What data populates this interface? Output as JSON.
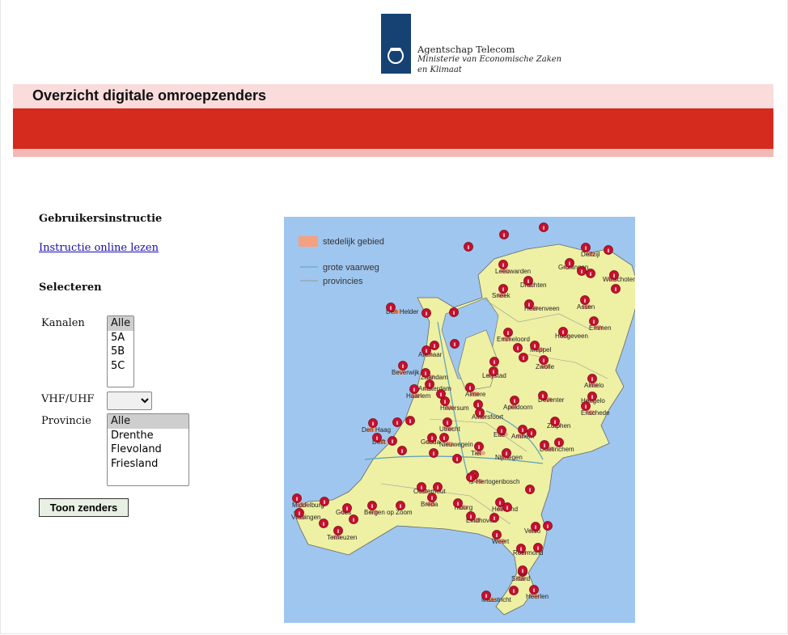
{
  "header": {
    "agency": "Agentschap Telecom",
    "ministry_line1": "Ministerie van Economische Zaken",
    "ministry_line2": "en Klimaat",
    "title": "Overzicht digitale omroepzenders"
  },
  "sidebar": {
    "instructions_heading": "Gebruikersinstructie",
    "instructions_link": "Instructie online lezen",
    "select_heading": "Selecteren",
    "channels_label": "Kanalen",
    "channels": [
      "Alle",
      "5A",
      "5B",
      "5C"
    ],
    "band_label": "VHF/UHF",
    "province_label": "Provincie",
    "provinces": [
      "Alle",
      "Drenthe",
      "Flevoland",
      "Friesland"
    ],
    "submit": "Toon zenders"
  },
  "map": {
    "legend": [
      "stedelijk gebied",
      "grote vaarweg",
      "provincies"
    ],
    "places": [
      "Den Helder",
      "Leeuwarden",
      "Groningen",
      "Delfzijl",
      "Drachten",
      "Sneek",
      "Heerenveen",
      "Assen",
      "Winschoten",
      "Emmen",
      "Hoogeveen",
      "Emmeloord",
      "Meppel",
      "Zwolle",
      "Lelystad",
      "Almere",
      "Alkmaar",
      "Beverwijk",
      "Zaandam",
      "Haarlem",
      "Amsterdam",
      "Hilversum",
      "Amersfoort",
      "Apeldoorn",
      "Deventer",
      "Almelo",
      "Hengelo",
      "Enschede",
      "Zutphen",
      "Den Haag",
      "Delft",
      "Utrecht",
      "Gouda",
      "Nieuwegein",
      "Ede",
      "Arnhem",
      "Doetinchem",
      "Tiel",
      "Nijmegen",
      "'s-Hertogenbosch",
      "Oosterhout",
      "Breda",
      "Tilburg",
      "Bergen op Zoom",
      "Goes",
      "Middelburg",
      "Vlissingen",
      "Terneuzen",
      "Eindhoven",
      "Helmond",
      "Venlo",
      "Weert",
      "Roermond",
      "Sittard",
      "Maastricht",
      "Heerlen"
    ]
  }
}
